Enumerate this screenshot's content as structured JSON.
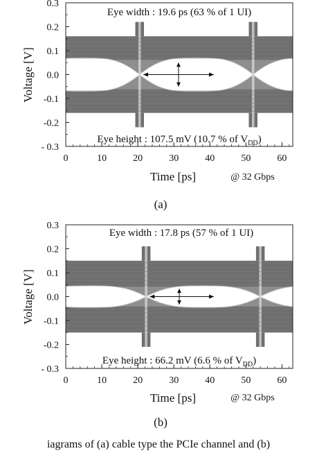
{
  "chart_data": [
    {
      "type": "eye_diagram",
      "panel_label": "(a)",
      "xlabel": "Time [ps]",
      "ylabel": "Voltage [V]",
      "xlim": [
        0,
        63
      ],
      "ylim": [
        -0.3,
        0.3
      ],
      "x_ticks": [
        0,
        10,
        20,
        30,
        40,
        50,
        60
      ],
      "y_ticks": [
        -0.3,
        -0.2,
        -0.1,
        0.0,
        0.1,
        0.2,
        0.3
      ],
      "x_tick_labels": [
        "0",
        "10",
        "20",
        "30",
        "40",
        "50",
        "60"
      ],
      "y_tick_labels": [
        "- 0.3",
        "-0.2",
        "-0.1",
        "0.0",
        "0.1",
        "0.2",
        "0.3"
      ],
      "rate_label": "@ 32 Gbps",
      "eye_width_text": "Eye width : 19.6 ps (63 % of 1 UI)",
      "eye_height_prefix": "Eye height : 107.5 mV (10.7 % of V",
      "eye_height_sub": "DD",
      "eye_height_suffix": ")",
      "eye_width_ps": 19.6,
      "eye_height_mV": 107.5,
      "eye_center_ps": 31.3,
      "crossings_ps": [
        20.5,
        52
      ],
      "eye_width_marker_ps": [
        21.5,
        41.1
      ],
      "eye_height_marker_V": [
        0.05,
        -0.05
      ],
      "eye_opening_V": [
        -0.07,
        0.07
      ],
      "signal_band_V": [
        [
          0.06,
          0.16
        ],
        [
          -0.06,
          -0.16
        ]
      ]
    },
    {
      "type": "eye_diagram",
      "panel_label": "(b)",
      "xlabel": "Time [ps]",
      "ylabel": "Voltage [V]",
      "xlim": [
        0,
        63
      ],
      "ylim": [
        -0.3,
        0.3
      ],
      "x_ticks": [
        0,
        10,
        20,
        30,
        40,
        50,
        60
      ],
      "y_ticks": [
        -0.3,
        -0.2,
        -0.1,
        0.0,
        0.1,
        0.2,
        0.3
      ],
      "x_tick_labels": [
        "0",
        "10",
        "20",
        "30",
        "40",
        "50",
        "60"
      ],
      "y_tick_labels": [
        "- 0.3",
        "-0.2",
        "-0.1",
        "0.0",
        "0.1",
        "0.2",
        "0.3"
      ],
      "rate_label": "@ 32 Gbps",
      "eye_width_text": "Eye width : 17.8 ps (57 % of 1 UI)",
      "eye_height_prefix": "Eye height : 66.2 mV (6.6 % of V",
      "eye_height_sub": "DD",
      "eye_height_suffix": ")",
      "eye_width_ps": 17.8,
      "eye_height_mV": 66.2,
      "eye_center_ps": 31.5,
      "crossings_ps": [
        22.3,
        54
      ],
      "eye_width_marker_ps": [
        23.3,
        41.1
      ],
      "eye_height_marker_V": [
        0.033,
        -0.033
      ],
      "eye_opening_V": [
        -0.045,
        0.045
      ],
      "signal_band_V": [
        [
          0.04,
          0.15
        ],
        [
          -0.04,
          -0.15
        ]
      ]
    }
  ],
  "caption_fragment": "iagrams of (a) cable type the PCIe channel and (b)"
}
